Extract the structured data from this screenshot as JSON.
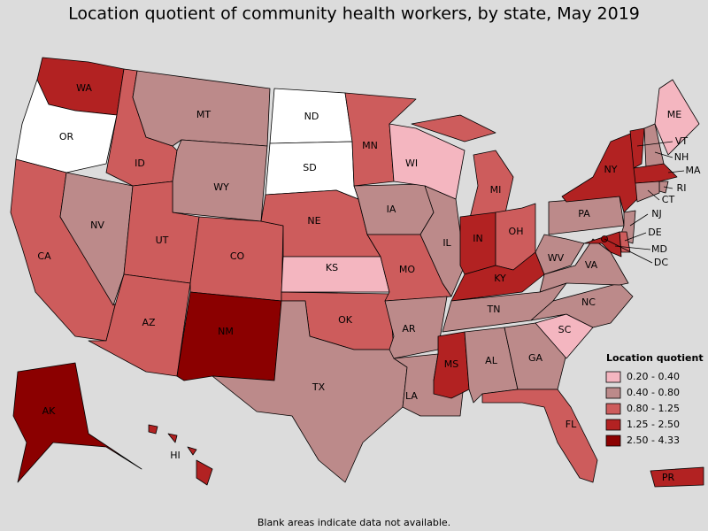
{
  "title": "Location quotient of community health workers, by state, May 2019",
  "legend": {
    "title": "Location quotient",
    "items": [
      {
        "label": "0.20 - 0.40",
        "color": "#f4b6c0"
      },
      {
        "label": "0.40 - 0.80",
        "color": "#bc8a8a"
      },
      {
        "label": "0.80 - 1.25",
        "color": "#cd5c5c"
      },
      {
        "label": "1.25 - 2.50",
        "color": "#b22222"
      },
      {
        "label": "2.50 - 4.33",
        "color": "#8b0000"
      }
    ]
  },
  "states": [
    {
      "abbr": "WA",
      "color": "#b22222"
    },
    {
      "abbr": "OR",
      "color": "#ffffff"
    },
    {
      "abbr": "CA",
      "color": "#cd5c5c"
    },
    {
      "abbr": "NV",
      "color": "#bc8a8a"
    },
    {
      "abbr": "ID",
      "color": "#cd5c5c"
    },
    {
      "abbr": "MT",
      "color": "#bc8a8a"
    },
    {
      "abbr": "WY",
      "color": "#bc8a8a"
    },
    {
      "abbr": "UT",
      "color": "#cd5c5c"
    },
    {
      "abbr": "AZ",
      "color": "#cd5c5c"
    },
    {
      "abbr": "CO",
      "color": "#cd5c5c"
    },
    {
      "abbr": "NM",
      "color": "#8b0000"
    },
    {
      "abbr": "ND",
      "color": "#ffffff"
    },
    {
      "abbr": "SD",
      "color": "#ffffff"
    },
    {
      "abbr": "NE",
      "color": "#cd5c5c"
    },
    {
      "abbr": "KS",
      "color": "#f4b6c0"
    },
    {
      "abbr": "OK",
      "color": "#cd5c5c"
    },
    {
      "abbr": "TX",
      "color": "#bc8a8a"
    },
    {
      "abbr": "MN",
      "color": "#cd5c5c"
    },
    {
      "abbr": "IA",
      "color": "#bc8a8a"
    },
    {
      "abbr": "MO",
      "color": "#cd5c5c"
    },
    {
      "abbr": "AR",
      "color": "#bc8a8a"
    },
    {
      "abbr": "LA",
      "color": "#bc8a8a"
    },
    {
      "abbr": "WI",
      "color": "#f4b6c0"
    },
    {
      "abbr": "IL",
      "color": "#bc8a8a"
    },
    {
      "abbr": "MI",
      "color": "#cd5c5c"
    },
    {
      "abbr": "IN",
      "color": "#b22222"
    },
    {
      "abbr": "OH",
      "color": "#cd5c5c"
    },
    {
      "abbr": "KY",
      "color": "#b22222"
    },
    {
      "abbr": "TN",
      "color": "#bc8a8a"
    },
    {
      "abbr": "MS",
      "color": "#b22222"
    },
    {
      "abbr": "AL",
      "color": "#bc8a8a"
    },
    {
      "abbr": "GA",
      "color": "#bc8a8a"
    },
    {
      "abbr": "FL",
      "color": "#cd5c5c"
    },
    {
      "abbr": "SC",
      "color": "#f4b6c0"
    },
    {
      "abbr": "NC",
      "color": "#bc8a8a"
    },
    {
      "abbr": "VA",
      "color": "#bc8a8a"
    },
    {
      "abbr": "WV",
      "color": "#bc8a8a"
    },
    {
      "abbr": "PA",
      "color": "#bc8a8a"
    },
    {
      "abbr": "NY",
      "color": "#b22222"
    },
    {
      "abbr": "VT",
      "color": "#b22222"
    },
    {
      "abbr": "NH",
      "color": "#bc8a8a"
    },
    {
      "abbr": "ME",
      "color": "#f4b6c0"
    },
    {
      "abbr": "MA",
      "color": "#b22222"
    },
    {
      "abbr": "RI",
      "color": "#bc8a8a"
    },
    {
      "abbr": "CT",
      "color": "#bc8a8a"
    },
    {
      "abbr": "NJ",
      "color": "#bc8a8a"
    },
    {
      "abbr": "DE",
      "color": "#cd5c5c"
    },
    {
      "abbr": "MD",
      "color": "#b22222"
    },
    {
      "abbr": "DC",
      "color": "#8b0000"
    },
    {
      "abbr": "AK",
      "color": "#8b0000"
    },
    {
      "abbr": "HI",
      "color": "#b22222"
    },
    {
      "abbr": "PR",
      "color": "#b22222"
    }
  ],
  "footnote": "Blank areas indicate data not available."
}
